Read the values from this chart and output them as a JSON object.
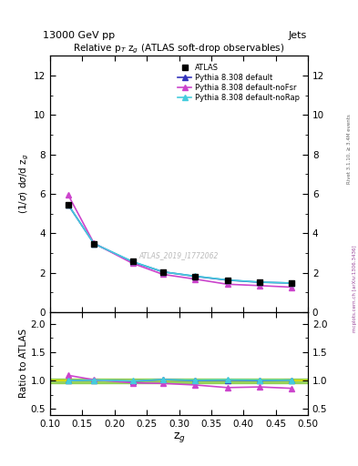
{
  "title_top": "13000 GeV pp",
  "title_right": "Jets",
  "plot_title": "Relative p$_T$ z$_g$ (ATLAS soft-drop observables)",
  "ylabel_main": "(1/σ) dσ/d z$_g$",
  "ylabel_ratio": "Ratio to ATLAS",
  "xlabel": "z$_g$",
  "watermark": "ATLAS_2019_I1772062",
  "right_label_top": "Rivet 3.1.10, ≥ 3.4M events",
  "right_label_bot": "mcplots.cern.ch [arXiv:1306.3436]",
  "x_data": [
    0.128,
    0.168,
    0.228,
    0.275,
    0.325,
    0.375,
    0.425,
    0.475
  ],
  "atlas_y": [
    5.45,
    3.45,
    2.58,
    2.02,
    1.82,
    1.62,
    1.52,
    1.47
  ],
  "pythia_default_y": [
    5.45,
    3.48,
    2.55,
    2.05,
    1.82,
    1.63,
    1.52,
    1.48
  ],
  "pythia_noFsr_y": [
    5.95,
    3.5,
    2.48,
    1.92,
    1.68,
    1.42,
    1.35,
    1.27
  ],
  "pythia_noRap_y": [
    5.45,
    3.48,
    2.57,
    2.05,
    1.83,
    1.64,
    1.53,
    1.48
  ],
  "ratio_default_y": [
    1.0,
    1.008,
    0.988,
    1.015,
    1.0,
    1.006,
    1.0,
    1.007
  ],
  "ratio_noFsr_y": [
    1.092,
    1.014,
    0.961,
    0.95,
    0.923,
    0.877,
    0.888,
    0.864
  ],
  "ratio_noRap_y": [
    1.0,
    1.008,
    0.996,
    1.015,
    1.006,
    1.012,
    1.007,
    1.007
  ],
  "color_atlas": "#000000",
  "color_default": "#3333bb",
  "color_noFsr": "#cc44cc",
  "color_noRap": "#44ccdd",
  "band_green": "#88cc44",
  "band_yellow": "#dddd00",
  "ylim_main": [
    0,
    13
  ],
  "ylim_ratio": [
    0.4,
    2.2
  ],
  "xlim": [
    0.1,
    0.5
  ],
  "yticks_main": [
    0,
    2,
    4,
    6,
    8,
    10,
    12
  ],
  "yticks_ratio": [
    0.5,
    1.0,
    1.5,
    2.0
  ]
}
